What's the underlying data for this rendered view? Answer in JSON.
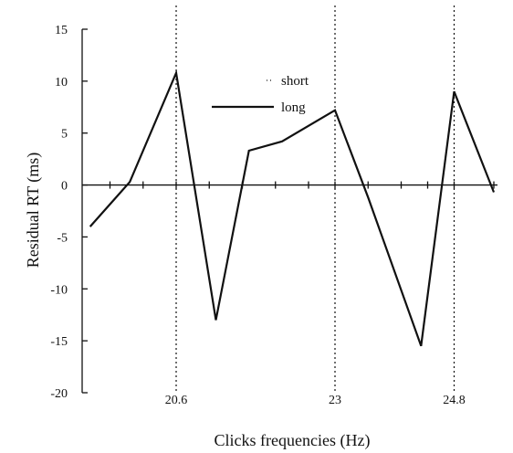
{
  "chart_data": {
    "type": "line",
    "xlabel": "Clicks frequencies (Hz)",
    "ylabel": "Residual RT (ms)",
    "ylim": [
      -20,
      15
    ],
    "y_ticks": [
      15,
      10,
      5,
      0,
      -5,
      -10,
      -15,
      -20
    ],
    "xlim": [
      19.0,
      26.0
    ],
    "x_tick_labels": [
      {
        "x": 20.6,
        "label": "20.6"
      },
      {
        "x": 23.0,
        "label": "23"
      },
      {
        "x": 24.8,
        "label": "24.8"
      }
    ],
    "zero_axis_ticks": [
      19.6,
      20.1,
      20.6,
      21.1,
      21.6,
      22.1,
      22.6,
      23.0,
      23.5,
      24.0,
      24.4,
      24.8,
      25.4
    ],
    "reference_lines_x": [
      20.6,
      23.0,
      24.8
    ],
    "grid": false,
    "legend": {
      "placement": "top-center",
      "entries": [
        {
          "label": "short",
          "style": "dotted"
        },
        {
          "label": "long",
          "style": "solid"
        }
      ]
    },
    "series": [
      {
        "name": "long",
        "style": "solid",
        "x": [
          19.3,
          19.9,
          20.6,
          21.2,
          21.7,
          22.2,
          23.0,
          23.5,
          24.3,
          24.8,
          25.4
        ],
        "values": [
          -4,
          0.3,
          10.8,
          -13,
          3.3,
          4.2,
          7.2,
          -1.2,
          -15.5,
          9,
          -0.7
        ]
      }
    ]
  }
}
